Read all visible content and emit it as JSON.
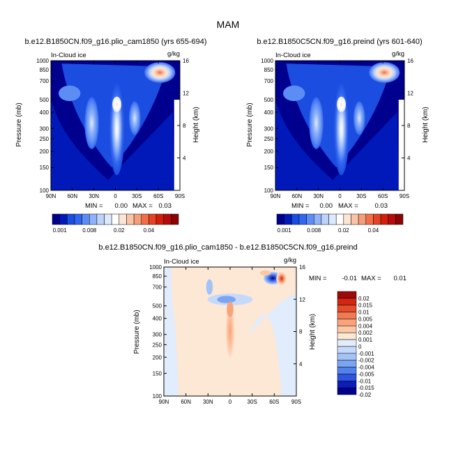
{
  "figure_title": "MAM",
  "colors": {
    "seq": [
      "#00008f",
      "#0019b8",
      "#1a4de0",
      "#3366f0",
      "#5c8df5",
      "#8fb2f8",
      "#bcd3fa",
      "#ddeafd",
      "#ffffff",
      "#fde5d3",
      "#f9c4a6",
      "#f59f79",
      "#f06e48",
      "#e54325",
      "#d21f0b",
      "#b40b0b",
      "#8a0404"
    ],
    "diff": [
      "#00008f",
      "#0b1fb6",
      "#2f55df",
      "#5282eb",
      "#7ba4f2",
      "#a3c3f7",
      "#c5d9fb",
      "#e1edfd",
      "#fde7d5",
      "#fbc7a5",
      "#f8a37a",
      "#f27a52",
      "#e64c2c",
      "#cf2713",
      "#9d0808"
    ]
  },
  "chart_data": [
    {
      "type": "contour",
      "title": "b.e12.B1850CN.f09_g16.plio_cam1850 (yrs 655-694)",
      "left_label": "In-Cloud ice",
      "units_label": "g/kg",
      "ylabel": "Pressure (mb)",
      "y2label": "Height (km)",
      "x_ticks": [
        "90N",
        "60N",
        "30N",
        "0",
        "30S",
        "60S",
        "90S"
      ],
      "y_ticks": [
        "100",
        "150",
        "200",
        "250",
        "300",
        "400",
        "500",
        "700",
        "850",
        "1000"
      ],
      "y_tick_values": [
        100,
        150,
        200,
        250,
        300,
        400,
        500,
        700,
        850,
        1000
      ],
      "height_ticks": [
        "4",
        "8",
        "12",
        "16"
      ],
      "height_tick_values": [
        4,
        8,
        12,
        16
      ],
      "ylim": [
        1000,
        100
      ],
      "min_label": "MIN =",
      "min_value": "0.00",
      "max_label": "MAX =",
      "max_value": "0.03"
    },
    {
      "type": "contour",
      "title": "b.e12.B1850C5CN.f09_g16.preind (yrs 601-640)",
      "left_label": "In-Cloud ice",
      "units_label": "g/kg",
      "ylabel": "Pressure (mb)",
      "y2label": "Height (km)",
      "x_ticks": [
        "90N",
        "60N",
        "30N",
        "0",
        "30S",
        "60S",
        "90S"
      ],
      "y_ticks": [
        "100",
        "150",
        "200",
        "250",
        "300",
        "400",
        "500",
        "700",
        "850",
        "1000"
      ],
      "y_tick_values": [
        100,
        150,
        200,
        250,
        300,
        400,
        500,
        700,
        850,
        1000
      ],
      "height_ticks": [
        "4",
        "8",
        "12",
        "16"
      ],
      "height_tick_values": [
        4,
        8,
        12,
        16
      ],
      "ylim": [
        1000,
        100
      ],
      "min_label": "MIN =",
      "min_value": "0.00",
      "max_label": "MAX =",
      "max_value": "0.03"
    },
    {
      "type": "contour",
      "title": "b.e12.B1850CN.f09_g16.plio_cam1850 - b.e12.B1850C5CN.f09_g16.preind",
      "left_label": "In-Cloud ice",
      "units_label": "g/kg",
      "ylabel": "Pressure (mb)",
      "y2label": "Height (km)",
      "x_ticks": [
        "90N",
        "60N",
        "30N",
        "0",
        "30S",
        "60S",
        "90S"
      ],
      "y_ticks": [
        "100",
        "150",
        "200",
        "250",
        "300",
        "400",
        "500",
        "700",
        "850",
        "1000"
      ],
      "y_tick_values": [
        100,
        150,
        200,
        250,
        300,
        400,
        500,
        700,
        850,
        1000
      ],
      "height_ticks": [
        "4",
        "8",
        "12",
        "16"
      ],
      "height_tick_values": [
        4,
        8,
        12,
        16
      ],
      "ylim": [
        1000,
        100
      ],
      "min_label": "MIN =",
      "min_value": "-0.01",
      "max_label": "MAX =",
      "max_value": "0.01"
    }
  ],
  "colorbar_top": {
    "labels": [
      "0.001",
      "0.008",
      "0.02",
      "0.04"
    ]
  },
  "colorbar_diff": {
    "labels": [
      "0.02",
      "0.015",
      "0.01",
      "0.005",
      "0.004",
      "0.002",
      "0.001",
      "0",
      "-0.001",
      "-0.002",
      "-0.004",
      "-0.005",
      "-0.01",
      "-0.015",
      "-0.02"
    ]
  }
}
